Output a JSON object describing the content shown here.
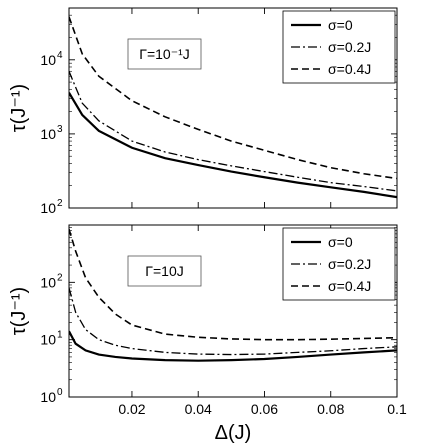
{
  "chart_data": [
    {
      "type": "line",
      "yscale": "log",
      "ylim": [
        100,
        50000
      ],
      "xlim": [
        0.001,
        0.1
      ],
      "xlabel": "",
      "ylabel": "τ(J⁻¹)",
      "y_ticks": [
        {
          "value": 100,
          "base": "10",
          "exp": "2"
        },
        {
          "value": 1000,
          "base": "10",
          "exp": "3"
        },
        {
          "value": 10000,
          "base": "10",
          "exp": "4"
        }
      ],
      "x_ticks": [],
      "annotation": "Γ=10⁻¹J",
      "legend_position": "top-right",
      "grid": false,
      "series": [
        {
          "name": "σ=0",
          "style": "solid",
          "x": [
            0.001,
            0.005,
            0.01,
            0.02,
            0.03,
            0.04,
            0.05,
            0.06,
            0.07,
            0.08,
            0.09,
            0.1
          ],
          "y": [
            3600,
            1800,
            1100,
            650,
            470,
            380,
            310,
            260,
            220,
            190,
            165,
            140
          ]
        },
        {
          "name": "σ=0.2J",
          "style": "dashdot",
          "x": [
            0.001,
            0.005,
            0.01,
            0.02,
            0.03,
            0.04,
            0.05,
            0.06,
            0.07,
            0.08,
            0.09,
            0.1
          ],
          "y": [
            7000,
            2600,
            1500,
            800,
            570,
            450,
            370,
            310,
            260,
            220,
            195,
            170
          ]
        },
        {
          "name": "σ=0.4J",
          "style": "dashed",
          "x": [
            0.001,
            0.005,
            0.01,
            0.02,
            0.03,
            0.04,
            0.05,
            0.06,
            0.07,
            0.08,
            0.09,
            0.1
          ],
          "y": [
            38000,
            12000,
            6000,
            2800,
            1700,
            1150,
            800,
            600,
            450,
            350,
            290,
            250
          ]
        }
      ]
    },
    {
      "type": "line",
      "yscale": "log",
      "ylim": [
        1,
        1000
      ],
      "xlim": [
        0.001,
        0.1
      ],
      "xlabel": "Δ(J)",
      "ylabel": "τ(J⁻¹)",
      "y_ticks": [
        {
          "value": 1,
          "base": "10",
          "exp": "0"
        },
        {
          "value": 10,
          "base": "10",
          "exp": "1"
        },
        {
          "value": 100,
          "base": "10",
          "exp": "2"
        }
      ],
      "x_ticks": [
        {
          "value": 0.02,
          "label": "0.02"
        },
        {
          "value": 0.04,
          "label": "0.04"
        },
        {
          "value": 0.06,
          "label": "0.06"
        },
        {
          "value": 0.08,
          "label": "0.08"
        },
        {
          "value": 0.1,
          "label": "0.1"
        }
      ],
      "annotation": "Γ=10J",
      "legend_position": "top-right",
      "grid": false,
      "series": [
        {
          "name": "σ=0",
          "style": "solid",
          "x": [
            0.001,
            0.003,
            0.006,
            0.01,
            0.015,
            0.02,
            0.03,
            0.04,
            0.05,
            0.06,
            0.07,
            0.08,
            0.09,
            0.1
          ],
          "y": [
            14,
            8.5,
            6.5,
            5.5,
            5,
            4.7,
            4.4,
            4.3,
            4.4,
            4.6,
            5,
            5.5,
            6,
            6.5
          ]
        },
        {
          "name": "σ=0.2J",
          "style": "dashdot",
          "x": [
            0.001,
            0.003,
            0.006,
            0.01,
            0.015,
            0.02,
            0.03,
            0.04,
            0.05,
            0.06,
            0.07,
            0.08,
            0.09,
            0.1
          ],
          "y": [
            80,
            30,
            15,
            10,
            8,
            7,
            6,
            5.6,
            5.5,
            5.6,
            6,
            6.4,
            7,
            7.5
          ]
        },
        {
          "name": "σ=0.4J",
          "style": "dashed",
          "x": [
            0.001,
            0.003,
            0.006,
            0.01,
            0.015,
            0.02,
            0.03,
            0.04,
            0.05,
            0.06,
            0.07,
            0.08,
            0.09,
            0.1
          ],
          "y": [
            850,
            350,
            120,
            55,
            28,
            18,
            12.5,
            11,
            10.3,
            10,
            10,
            10.2,
            10.5,
            10.8
          ]
        }
      ]
    }
  ]
}
